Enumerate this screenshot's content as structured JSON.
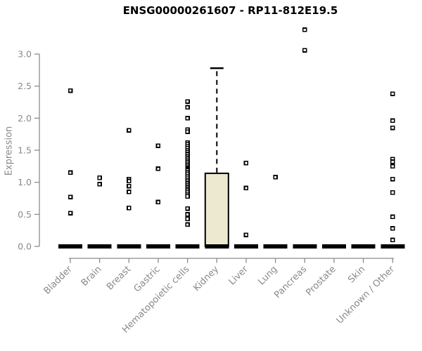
{
  "chart_data": {
    "type": "boxplot",
    "title": "ENSG00000261607 - RP11-812E19.5",
    "ylabel": "Expression",
    "xlabel": "",
    "ylim": [
      0,
      3.4
    ],
    "yticks": [
      0,
      0.5,
      1.0,
      1.5,
      2.0,
      2.5,
      3.0
    ],
    "grid": false,
    "legend": false,
    "point_marker": "open-square",
    "colors": {
      "box_fill": "#EDE8D0",
      "box_border": "#000000",
      "median": "#000000",
      "point_stroke": "#000000",
      "point_fill": "#FFFFFF",
      "axis": "#8B8B8B",
      "tick_text": "#898989",
      "title_text": "#000000",
      "background": "#FFFFFF"
    },
    "categories": [
      "Bladder",
      "Brain",
      "Breast",
      "Gastric",
      "Hematopoietic cells",
      "Kidney",
      "Liver",
      "Lung",
      "Pancreas",
      "Prostate",
      "Skin",
      "Unknown / Other"
    ],
    "groups": [
      {
        "category": "Bladder",
        "median": 0,
        "points": [
          2.43,
          1.15,
          0.77,
          0.52
        ]
      },
      {
        "category": "Brain",
        "median": 0,
        "points": [
          1.07,
          0.97
        ]
      },
      {
        "category": "Breast",
        "median": 0,
        "points": [
          1.81,
          1.05,
          1.02,
          0.94,
          0.85,
          0.6
        ]
      },
      {
        "category": "Gastric",
        "median": 0,
        "points": [
          1.57,
          1.21,
          0.69
        ]
      },
      {
        "category": "Hematopoietic cells",
        "median": 0,
        "points": [
          2.26,
          2.17,
          2.0,
          1.82,
          1.79,
          1.62,
          1.59,
          1.56,
          1.53,
          1.5,
          1.47,
          1.44,
          1.41,
          1.38,
          1.35,
          1.32,
          1.29,
          1.26,
          1.23,
          1.21,
          1.19,
          1.16,
          1.13,
          1.1,
          1.07,
          1.04,
          1.01,
          0.98,
          0.95,
          0.92,
          0.89,
          0.87,
          0.84,
          0.81,
          0.78,
          0.59,
          0.5,
          0.43,
          0.34
        ]
      },
      {
        "category": "Kidney",
        "median": 0,
        "box": {
          "q1": 0,
          "median": 0,
          "q3": 1.14,
          "whisker_low": 0,
          "whisker_high": 2.78
        },
        "points": []
      },
      {
        "category": "Liver",
        "median": 0,
        "points": [
          1.3,
          0.91,
          0.18
        ]
      },
      {
        "category": "Lung",
        "median": 0,
        "points": [
          1.08
        ]
      },
      {
        "category": "Pancreas",
        "median": 0,
        "points": [
          3.38,
          3.06
        ]
      },
      {
        "category": "Prostate",
        "median": 0,
        "points": []
      },
      {
        "category": "Skin",
        "median": 0,
        "points": []
      },
      {
        "category": "Unknown / Other",
        "median": 0,
        "points": [
          2.38,
          1.96,
          1.85,
          1.36,
          1.32,
          1.25,
          1.05,
          0.84,
          0.46,
          0.28,
          0.1
        ]
      }
    ]
  }
}
